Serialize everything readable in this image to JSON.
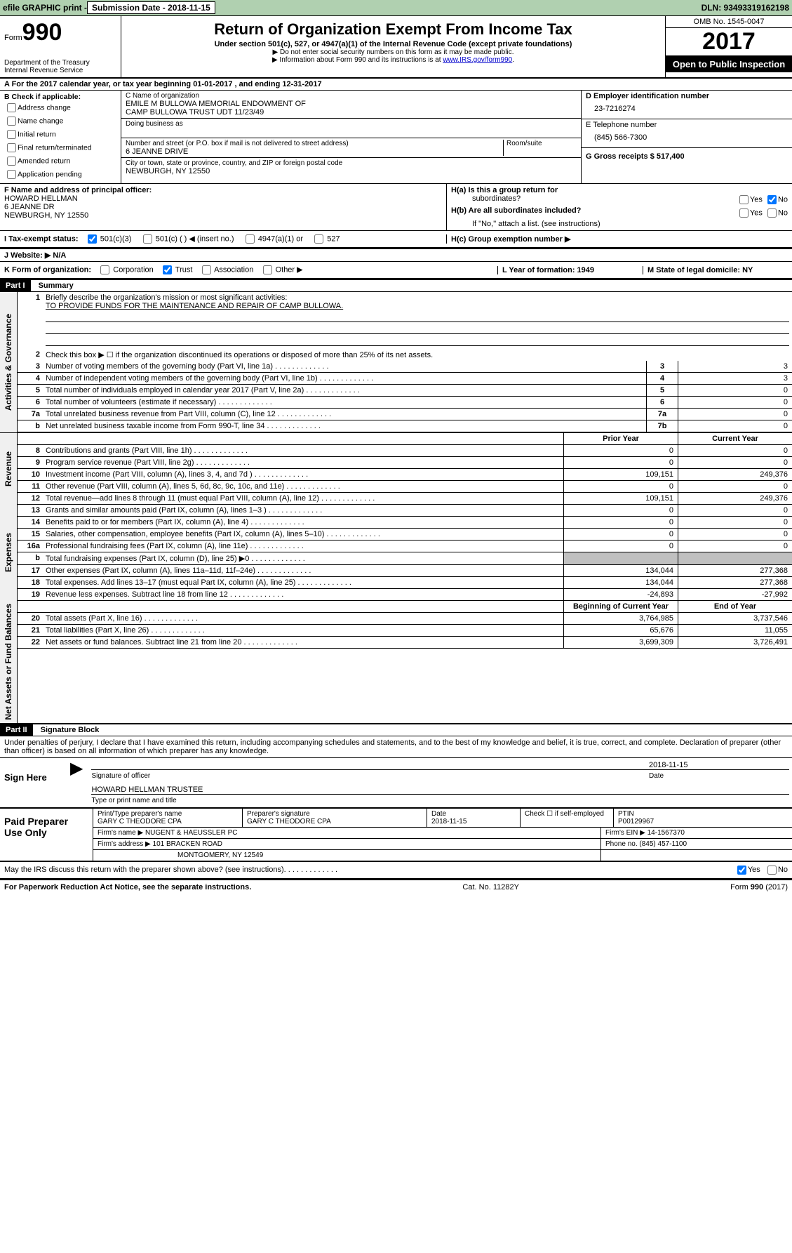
{
  "topbar": {
    "efile": "efile GRAPHIC print - ",
    "submission_label": "Submission Date - 2018-11-15",
    "dln_label": "DLN: 93493319162198"
  },
  "header": {
    "form_label": "Form",
    "form_number_big": "990",
    "dept": "Department of the Treasury",
    "irs": "Internal Revenue Service",
    "title": "Return of Organization Exempt From Income Tax",
    "subtitle": "Under section 501(c), 527, or 4947(a)(1) of the Internal Revenue Code (except private foundations)",
    "note1": "▶ Do not enter social security numbers on this form as it may be made public.",
    "note2_pre": "▶ Information about Form 990 and its instructions is at ",
    "note2_link": "www.IRS.gov/form990",
    "omb": "OMB No. 1545-0047",
    "year": "2017",
    "open": "Open to Public Inspection"
  },
  "section_a": "A   For the 2017 calendar year, or tax year beginning 01-01-2017    , and ending 12-31-2017",
  "box_b": {
    "label": "B Check if applicable:",
    "items": [
      "Address change",
      "Name change",
      "Initial return",
      "Final return/terminated",
      "Amended return",
      "Application pending"
    ]
  },
  "box_c": {
    "name_label": "C Name of organization",
    "name1": "EMILE M BULLOWA MEMORIAL ENDOWMENT OF",
    "name2": "CAMP BULLOWA TRUST UDT 11/23/49",
    "dba": "Doing business as",
    "addr_label": "Number and street (or P.O. box if mail is not delivered to street address)",
    "room_label": "Room/suite",
    "addr": "6 JEANNE DRIVE",
    "city_label": "City or town, state or province, country, and ZIP or foreign postal code",
    "city": "NEWBURGH, NY  12550"
  },
  "box_d": {
    "label": "D Employer identification number",
    "ein": "23-7216274"
  },
  "box_e": {
    "label": "E Telephone number",
    "phone": "(845) 566-7300"
  },
  "box_g": {
    "label": "G Gross receipts $ 517,400"
  },
  "box_f": {
    "label": "F  Name and address of principal officer:",
    "name": "HOWARD HELLMAN",
    "addr": "6 JEANNE DR",
    "city": "NEWBURGH, NY  12550"
  },
  "box_h": {
    "ha": "H(a)  Is this a group return for",
    "ha2": "subordinates?",
    "hb": "H(b)  Are all subordinates included?",
    "hb_note": "If \"No,\" attach a list. (see instructions)",
    "hc": "H(c)  Group exemption number ▶",
    "yes": "Yes",
    "no": "No"
  },
  "box_i": {
    "label": "I  Tax-exempt status:",
    "c3": "501(c)(3)",
    "c": "501(c) (   ) ◀ (insert no.)",
    "a1": "4947(a)(1) or",
    "s527": "527"
  },
  "box_j": "J  Website: ▶   N/A",
  "box_k": {
    "label": "K Form of organization:",
    "corp": "Corporation",
    "trust": "Trust",
    "assoc": "Association",
    "other": "Other ▶"
  },
  "box_l": "L Year of formation: 1949",
  "box_m": "M State of legal domicile: NY",
  "part1": {
    "hdr": "Part I",
    "title": "Summary",
    "tabs": {
      "ag": "Activities & Governance",
      "rev": "Revenue",
      "exp": "Expenses",
      "na": "Net Assets or Fund Balances"
    },
    "q1": "Briefly describe the organization's mission or most significant activities:",
    "q1a": "TO PROVIDE FUNDS FOR THE MAINTENANCE AND REPAIR OF CAMP BULLOWA.",
    "q2": "Check this box ▶ ☐  if the organization discontinued its operations or disposed of more than 25% of its net assets.",
    "rows_ag": [
      {
        "n": "3",
        "d": "Number of voting members of the governing body (Part VI, line 1a)",
        "b": "3",
        "v": "3"
      },
      {
        "n": "4",
        "d": "Number of independent voting members of the governing body (Part VI, line 1b)",
        "b": "4",
        "v": "3"
      },
      {
        "n": "5",
        "d": "Total number of individuals employed in calendar year 2017 (Part V, line 2a)",
        "b": "5",
        "v": "0"
      },
      {
        "n": "6",
        "d": "Total number of volunteers (estimate if necessary)",
        "b": "6",
        "v": "0"
      },
      {
        "n": "7a",
        "d": "Total unrelated business revenue from Part VIII, column (C), line 12",
        "b": "7a",
        "v": "0"
      },
      {
        "n": "b",
        "d": "Net unrelated business taxable income from Form 990-T, line 34",
        "b": "7b",
        "v": "0"
      }
    ],
    "col_py": "Prior Year",
    "col_cy": "Current Year",
    "rows_rev": [
      {
        "n": "8",
        "d": "Contributions and grants (Part VIII, line 1h)",
        "py": "0",
        "cy": "0"
      },
      {
        "n": "9",
        "d": "Program service revenue (Part VIII, line 2g)",
        "py": "0",
        "cy": "0"
      },
      {
        "n": "10",
        "d": "Investment income (Part VIII, column (A), lines 3, 4, and 7d )",
        "py": "109,151",
        "cy": "249,376"
      },
      {
        "n": "11",
        "d": "Other revenue (Part VIII, column (A), lines 5, 6d, 8c, 9c, 10c, and 11e)",
        "py": "0",
        "cy": "0"
      },
      {
        "n": "12",
        "d": "Total revenue—add lines 8 through 11 (must equal Part VIII, column (A), line 12)",
        "py": "109,151",
        "cy": "249,376"
      }
    ],
    "rows_exp": [
      {
        "n": "13",
        "d": "Grants and similar amounts paid (Part IX, column (A), lines 1–3 )",
        "py": "0",
        "cy": "0"
      },
      {
        "n": "14",
        "d": "Benefits paid to or for members (Part IX, column (A), line 4)",
        "py": "0",
        "cy": "0"
      },
      {
        "n": "15",
        "d": "Salaries, other compensation, employee benefits (Part IX, column (A), lines 5–10)",
        "py": "0",
        "cy": "0"
      },
      {
        "n": "16a",
        "d": "Professional fundraising fees (Part IX, column (A), line 11e)",
        "py": "0",
        "cy": "0"
      },
      {
        "n": "b",
        "d": "Total fundraising expenses (Part IX, column (D), line 25) ▶0",
        "py": "",
        "cy": "",
        "shade": true
      },
      {
        "n": "17",
        "d": "Other expenses (Part IX, column (A), lines 11a–11d, 11f–24e)",
        "py": "134,044",
        "cy": "277,368"
      },
      {
        "n": "18",
        "d": "Total expenses. Add lines 13–17 (must equal Part IX, column (A), line 25)",
        "py": "134,044",
        "cy": "277,368"
      },
      {
        "n": "19",
        "d": "Revenue less expenses. Subtract line 18 from line 12",
        "py": "-24,893",
        "cy": "-27,992"
      }
    ],
    "col_by": "Beginning of Current Year",
    "col_ey": "End of Year",
    "rows_na": [
      {
        "n": "20",
        "d": "Total assets (Part X, line 16)",
        "py": "3,764,985",
        "cy": "3,737,546"
      },
      {
        "n": "21",
        "d": "Total liabilities (Part X, line 26)",
        "py": "65,676",
        "cy": "11,055"
      },
      {
        "n": "22",
        "d": "Net assets or fund balances. Subtract line 21 from line 20",
        "py": "3,699,309",
        "cy": "3,726,491"
      }
    ]
  },
  "part2": {
    "hdr": "Part II",
    "title": "Signature Block",
    "decl": "Under penalties of perjury, I declare that I have examined this return, including accompanying schedules and statements, and to the best of my knowledge and belief, it is true, correct, and complete. Declaration of preparer (other than officer) is based on all information of which preparer has any knowledge.",
    "sign_here": "Sign Here",
    "sig_date": "2018-11-15",
    "sig_label": "Signature of officer",
    "date_label": "Date",
    "name": "HOWARD HELLMAN TRUSTEE",
    "name_label": "Type or print name and title"
  },
  "paid": {
    "label": "Paid Preparer Use Only",
    "p_name_l": "Print/Type preparer's name",
    "p_name": "GARY C THEODORE CPA",
    "p_sig_l": "Preparer's signature",
    "p_sig": "GARY C THEODORE CPA",
    "p_date_l": "Date",
    "p_date": "2018-11-15",
    "p_check": "Check ☐ if self-employed",
    "ptin_l": "PTIN",
    "ptin": "P00129967",
    "firm_l": "Firm's name     ▶",
    "firm": "NUGENT & HAEUSSLER PC",
    "ein_l": "Firm's EIN ▶",
    "ein": "14-1567370",
    "addr_l": "Firm's address ▶",
    "addr": "101 BRACKEN ROAD",
    "addr2": "MONTGOMERY, NY  12549",
    "phone_l": "Phone no.",
    "phone": "(845) 457-1100"
  },
  "bottom": {
    "discuss": "May the IRS discuss this return with the preparer shown above? (see instructions)",
    "yes": "Yes",
    "no": "No",
    "pra": "For Paperwork Reduction Act Notice, see the separate instructions.",
    "cat": "Cat. No. 11282Y",
    "form": "Form 990 (2017)"
  }
}
